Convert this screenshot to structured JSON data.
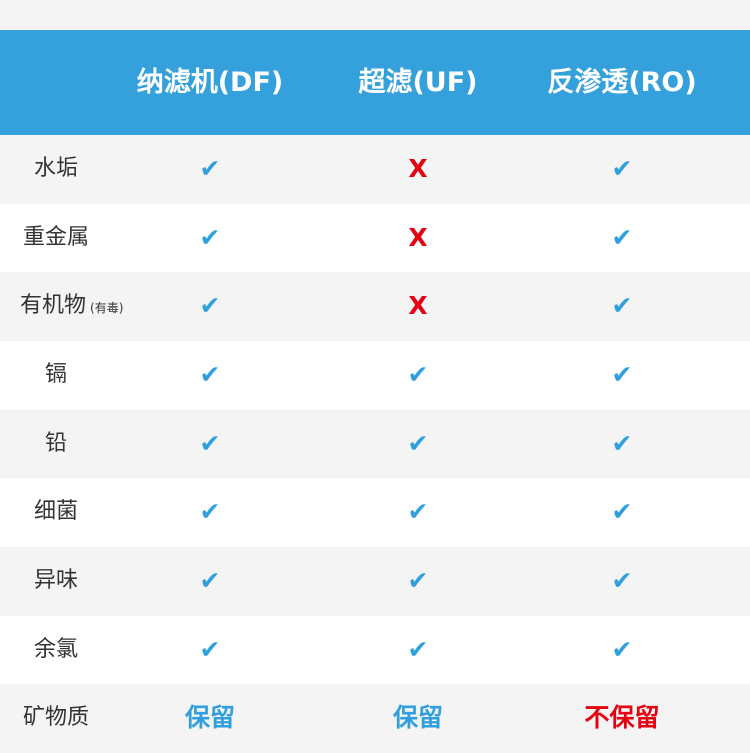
{
  "table": {
    "header": [
      "纳滤机(DF)",
      "超滤(UF)",
      "反渗透(RO)"
    ],
    "header_color": "#34a0dc",
    "rows": [
      {
        "label": "水垢",
        "cells": [
          {
            "text": "✔",
            "color": "#2f9fdd"
          },
          {
            "text": "X",
            "color": "#e60012"
          },
          {
            "text": "✔",
            "color": "#2f9fdd"
          }
        ]
      },
      {
        "label": "重金属",
        "cells": [
          {
            "text": "✔",
            "color": "#2f9fdd"
          },
          {
            "text": "X",
            "color": "#e60012"
          },
          {
            "text": "✔",
            "color": "#2f9fdd"
          }
        ]
      },
      {
        "label": "有机物",
        "note": "(有毒)",
        "cells": [
          {
            "text": "✔",
            "color": "#2f9fdd"
          },
          {
            "text": "X",
            "color": "#e60012"
          },
          {
            "text": "✔",
            "color": "#2f9fdd"
          }
        ]
      },
      {
        "label": "镉",
        "cells": [
          {
            "text": "✔",
            "color": "#2f9fdd"
          },
          {
            "text": "✔",
            "color": "#2f9fdd"
          },
          {
            "text": "✔",
            "color": "#2f9fdd"
          }
        ]
      },
      {
        "label": "铅",
        "cells": [
          {
            "text": "✔",
            "color": "#2f9fdd"
          },
          {
            "text": "✔",
            "color": "#2f9fdd"
          },
          {
            "text": "✔",
            "color": "#2f9fdd"
          }
        ]
      },
      {
        "label": "细菌",
        "cells": [
          {
            "text": "✔",
            "color": "#2f9fdd"
          },
          {
            "text": "✔",
            "color": "#2f9fdd"
          },
          {
            "text": "✔",
            "color": "#2f9fdd"
          }
        ]
      },
      {
        "label": "异味",
        "cells": [
          {
            "text": "✔",
            "color": "#2f9fdd"
          },
          {
            "text": "✔",
            "color": "#2f9fdd"
          },
          {
            "text": "✔",
            "color": "#2f9fdd"
          }
        ]
      },
      {
        "label": "余氯",
        "cells": [
          {
            "text": "✔",
            "color": "#2f9fdd"
          },
          {
            "text": "✔",
            "color": "#2f9fdd"
          },
          {
            "text": "✔",
            "color": "#2f9fdd"
          }
        ]
      },
      {
        "label": "矿物质",
        "cells": [
          {
            "text": "保留",
            "color": "#2f9fdd"
          },
          {
            "text": "保留",
            "color": "#2f9fdd"
          },
          {
            "text": "不保留",
            "color": "#e60012"
          }
        ]
      }
    ]
  }
}
